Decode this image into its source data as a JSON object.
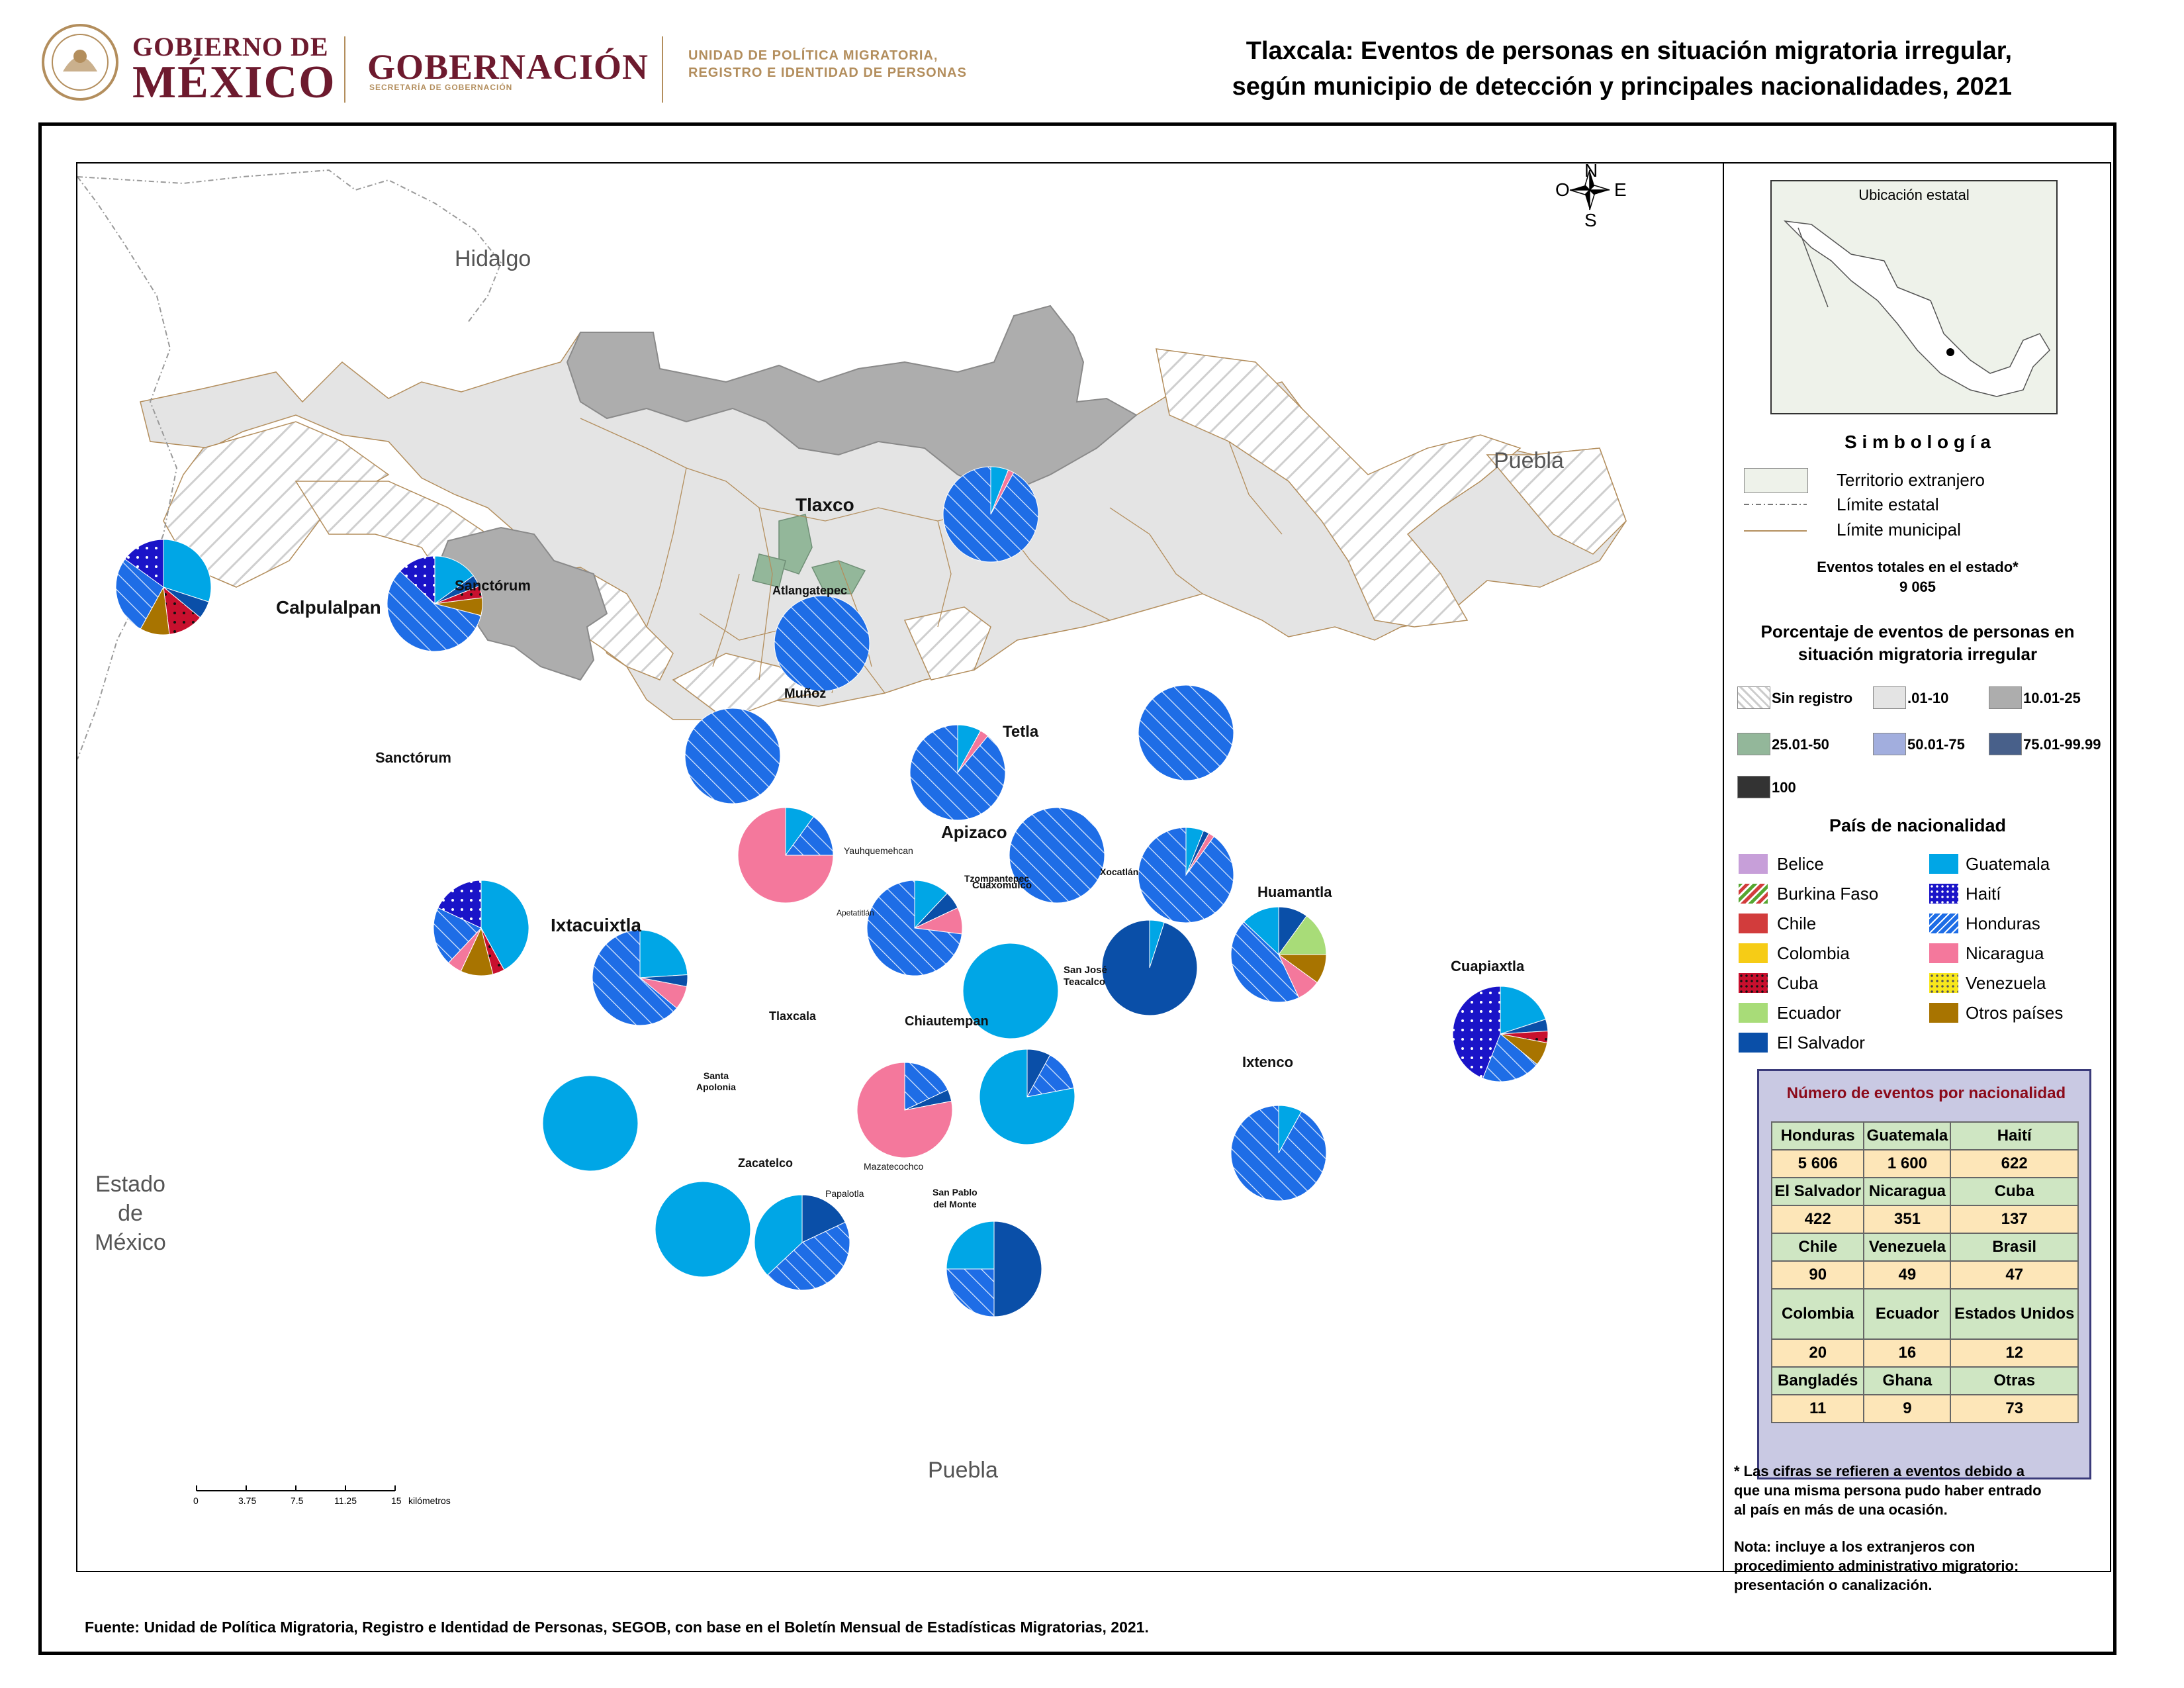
{
  "header": {
    "gobierno_de": "GOBIERNO DE",
    "mexico": "MÉXICO",
    "gobernacion": "GOBERNACIÓN",
    "secretaria": "SECRETARÍA DE GOBERNACIÓN",
    "unidad_line1": "UNIDAD DE POLÍTICA MIGRATORIA,",
    "unidad_line2": "REGISTRO E IDENTIDAD DE PERSONAS"
  },
  "title": {
    "line1": "Tlaxcala: Eventos de personas en situación migratoria irregular,",
    "line2": "según municipio de detección y principales nacionalidades, 2021"
  },
  "regions": {
    "hidalgo": "Hidalgo",
    "puebla_ne": "Puebla",
    "puebla_s": "Puebla",
    "estado_line1": "Estado",
    "estado_line2": "de",
    "estado_line3": "México"
  },
  "municipalities": {
    "tlaxco": "Tlaxco",
    "calpulalpan": "Calpulalpan",
    "sanctorum1": "Sanctórum",
    "sanctorum2": "Sanctórum",
    "atlangatepec": "Atlangatepec",
    "munoz": "Muñoz",
    "tetla": "Tetla",
    "apizaco": "Apizaco",
    "yauhquemehcan": "Yauhquemehcan",
    "tzompantepec": "Tzompantepec",
    "xocatlan": "Xocatlán",
    "huamantla": "Huamantla",
    "ixtacuixtla": "Ixtacuixtla",
    "apetatitlan": "Apetatitlán",
    "cuaxomulco": "Cuaxomulco",
    "san_jose_1": "San José",
    "san_jose_2": "Teacalco",
    "cuapiaxtla": "Cuapiaxtla",
    "tlaxcala": "Tlaxcala",
    "chiautempan": "Chiautempan",
    "ixtenco": "Ixtenco",
    "santa_apolonia_1": "Santa",
    "santa_apolonia_2": "Apolonia",
    "zacatelco": "Zacatelco",
    "mazatecochco": "Mazatecochco",
    "papalotla": "Papalotla",
    "san_pablo_1": "San Pablo",
    "san_pablo_2": "del Monte"
  },
  "compass": {
    "n": "N",
    "s": "S",
    "e": "E",
    "o": "O"
  },
  "scale": {
    "ticks": [
      "0",
      "3.75",
      "7.5",
      "11.25",
      "15"
    ],
    "unit": "kilómetros"
  },
  "inset": {
    "title": "Ubicación estatal"
  },
  "legend": {
    "simbologia": "S i m b o l o g í a",
    "territorio": "Territorio extranjero",
    "limite_estatal": "Límite estatal",
    "limite_municipal": "Límite municipal",
    "eventos_totales_label": "Eventos totales en el estado*",
    "eventos_totales_value": "9 065",
    "porcentaje_line1": "Porcentaje de eventos de personas en",
    "porcentaje_line2": "situación migratoria irregular",
    "classes": [
      "Sin registro",
      ".01-10",
      "10.01-25",
      "25.01-50",
      "50.01-75",
      "75.01-99.99",
      "100"
    ],
    "class_colors": [
      "#ffffff",
      "#e4e4e4",
      "#adadad",
      "#93b79a",
      "#a2aede",
      "#48608a",
      "#333333"
    ],
    "pais_title": "País de nacionalidad",
    "countries": [
      "Belice",
      "Burkina Faso",
      "Chile",
      "Colombia",
      "Cuba",
      "Ecuador",
      "El Salvador",
      "Guatemala",
      "Haití",
      "Honduras",
      "Nicaragua",
      "Venezuela",
      "Otros países"
    ],
    "country_colors": {
      "Belice": "#c79fd9",
      "Burkina Faso": "#55a630",
      "Chile": "#d23c3c",
      "Colombia": "#f6cc16",
      "Cuba": "#c8102e",
      "Ecuador": "#a8dc78",
      "El Salvador": "#0a4fa8",
      "Guatemala": "#00a6e6",
      "Haití": "#1a14c8",
      "Honduras": "#1e6de6",
      "Nicaragua": "#f4789c",
      "Venezuela": "#f8e71c",
      "Otros países": "#a87400"
    }
  },
  "nationality_table": {
    "title": "Número de eventos por nacionalidad",
    "rows": [
      {
        "names": [
          "Honduras",
          "Guatemala",
          "Haití"
        ],
        "values": [
          "5 606",
          "1 600",
          "622"
        ]
      },
      {
        "names": [
          "El Salvador",
          "Nicaragua",
          "Cuba"
        ],
        "values": [
          "422",
          "351",
          "137"
        ]
      },
      {
        "names": [
          "Chile",
          "Venezuela",
          "Brasil"
        ],
        "values": [
          "90",
          "49",
          "47"
        ]
      },
      {
        "names": [
          "Colombia",
          "Ecuador",
          "Estados Unidos"
        ],
        "values": [
          "20",
          "16",
          "12"
        ]
      },
      {
        "names": [
          "Bangladés",
          "Ghana",
          "Otras"
        ],
        "values": [
          "11",
          "9",
          "73"
        ]
      }
    ]
  },
  "notes": {
    "note1_line1": "* Las cifras se refieren a eventos debido a",
    "note1_line2": "que una misma persona pudo haber entrado",
    "note1_line3": "al país en más de una ocasión.",
    "note2_line1": "Nota: incluye a los extranjeros con",
    "note2_line2": "procedimiento administrativo migratorio:",
    "note2_line3": "presentación o canalización."
  },
  "footer": "Fuente: Unidad de Política Migratoria, Registro e Identidad de Personas, SEGOB, con base en el Boletín Mensual de Estadísticas Migratorias, 2021.",
  "pies": [
    {
      "name": "calpulalpan",
      "slices": [
        {
          "c": "Guatemala",
          "v": 30
        },
        {
          "c": "El Salvador",
          "v": 6
        },
        {
          "c": "Cuba",
          "v": 12
        },
        {
          "c": "Otros países",
          "v": 10
        },
        {
          "c": "Honduras",
          "v": 27
        },
        {
          "c": "Haití",
          "v": 15
        }
      ]
    },
    {
      "name": "sanctorum",
      "slices": [
        {
          "c": "Guatemala",
          "v": 15
        },
        {
          "c": "El Salvador",
          "v": 4
        },
        {
          "c": "Cuba",
          "v": 4
        },
        {
          "c": "Otros países",
          "v": 6
        },
        {
          "c": "Honduras",
          "v": 58
        },
        {
          "c": "Haití",
          "v": 13
        }
      ]
    },
    {
      "name": "tlaxco",
      "slices": [
        {
          "c": "Guatemala",
          "v": 6
        },
        {
          "c": "Nicaragua",
          "v": 2
        },
        {
          "c": "Honduras",
          "v": 92
        }
      ]
    },
    {
      "name": "atlangatepec",
      "slices": [
        {
          "c": "Honduras",
          "v": 100
        }
      ]
    },
    {
      "name": "munoz",
      "slices": [
        {
          "c": "Honduras",
          "v": 100
        }
      ]
    },
    {
      "name": "tetla",
      "slices": [
        {
          "c": "Guatemala",
          "v": 8
        },
        {
          "c": "Nicaragua",
          "v": 3
        },
        {
          "c": "Honduras",
          "v": 89
        }
      ]
    },
    {
      "name": "xaltocan",
      "slices": [
        {
          "c": "Honduras",
          "v": 100
        }
      ]
    },
    {
      "name": "yauhquemehcan",
      "slices": [
        {
          "c": "Guatemala",
          "v": 10
        },
        {
          "c": "Honduras",
          "v": 15
        },
        {
          "c": "Nicaragua",
          "v": 75
        }
      ]
    },
    {
      "name": "tzompantepec",
      "slices": [
        {
          "c": "Honduras",
          "v": 100
        }
      ]
    },
    {
      "name": "xocatlan",
      "slices": [
        {
          "c": "Guatemala",
          "v": 6
        },
        {
          "c": "El Salvador",
          "v": 2
        },
        {
          "c": "Nicaragua",
          "v": 2
        },
        {
          "c": "Honduras",
          "v": 90
        }
      ]
    },
    {
      "name": "ixtacuixtla",
      "slices": [
        {
          "c": "Guatemala",
          "v": 42
        },
        {
          "c": "Cuba",
          "v": 4
        },
        {
          "c": "Otros países",
          "v": 11
        },
        {
          "c": "Nicaragua",
          "v": 5
        },
        {
          "c": "Honduras",
          "v": 20
        },
        {
          "c": "Haití",
          "v": 18
        }
      ]
    },
    {
      "name": "apetatitlan",
      "slices": [
        {
          "c": "Guatemala",
          "v": 12
        },
        {
          "c": "El Salvador",
          "v": 6
        },
        {
          "c": "Nicaragua",
          "v": 9
        },
        {
          "c": "Honduras",
          "v": 73
        }
      ]
    },
    {
      "name": "tlaxcala",
      "slices": [
        {
          "c": "Guatemala",
          "v": 24
        },
        {
          "c": "El Salvador",
          "v": 4
        },
        {
          "c": "Nicaragua",
          "v": 8
        },
        {
          "c": "Honduras",
          "v": 64
        }
      ]
    },
    {
      "name": "huamantla",
      "slices": [
        {
          "c": "El Salvador",
          "v": 10
        },
        {
          "c": "Ecuador",
          "v": 15
        },
        {
          "c": "Otros países",
          "v": 10
        },
        {
          "c": "Nicaragua",
          "v": 8
        },
        {
          "c": "Honduras",
          "v": 44
        },
        {
          "c": "Guatemala",
          "v": 13
        }
      ]
    },
    {
      "name": "cuapiaxtla",
      "slices": [
        {
          "c": "Guatemala",
          "v": 20
        },
        {
          "c": "El Salvador",
          "v": 4
        },
        {
          "c": "Cuba",
          "v": 4
        },
        {
          "c": "Otros países",
          "v": 8
        },
        {
          "c": "Honduras",
          "v": 20
        },
        {
          "c": "Haití",
          "v": 44
        }
      ]
    },
    {
      "name": "chiautempan",
      "slices": [
        {
          "c": "Guatemala",
          "v": 100
        }
      ]
    },
    {
      "name": "san-jose-teacalco",
      "slices": [
        {
          "c": "Guatemala",
          "v": 5
        },
        {
          "c": "El Salvador",
          "v": 95
        }
      ]
    },
    {
      "name": "santa-apolonia",
      "slices": [
        {
          "c": "Guatemala",
          "v": 100
        }
      ]
    },
    {
      "name": "mazatecochco",
      "slices": [
        {
          "c": "Honduras",
          "v": 18
        },
        {
          "c": "El Salvador",
          "v": 4
        },
        {
          "c": "Nicaragua",
          "v": 78
        }
      ]
    },
    {
      "name": "santa-cruz",
      "slices": [
        {
          "c": "El Salvador",
          "v": 8
        },
        {
          "c": "Honduras",
          "v": 14
        },
        {
          "c": "Guatemala",
          "v": 78
        }
      ]
    },
    {
      "name": "ixtenco",
      "slices": [
        {
          "c": "Guatemala",
          "v": 8
        },
        {
          "c": "Honduras",
          "v": 92
        }
      ]
    },
    {
      "name": "zacatelco",
      "slices": [
        {
          "c": "Guatemala",
          "v": 100
        }
      ]
    },
    {
      "name": "papalotla",
      "slices": [
        {
          "c": "El Salvador",
          "v": 18
        },
        {
          "c": "Honduras",
          "v": 45
        },
        {
          "c": "Guatemala",
          "v": 37
        }
      ]
    },
    {
      "name": "san-pablo-del-monte",
      "slices": [
        {
          "c": "El Salvador",
          "v": 50
        },
        {
          "c": "Honduras",
          "v": 25
        },
        {
          "c": "Guatemala",
          "v": 25
        }
      ]
    }
  ]
}
